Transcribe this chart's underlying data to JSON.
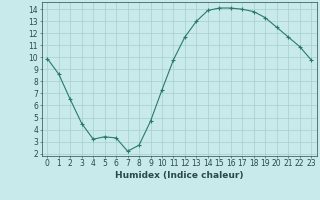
{
  "x": [
    0,
    1,
    2,
    3,
    4,
    5,
    6,
    7,
    8,
    9,
    10,
    11,
    12,
    13,
    14,
    15,
    16,
    17,
    18,
    19,
    20,
    21,
    22,
    23
  ],
  "y": [
    9.9,
    8.6,
    6.5,
    4.5,
    3.2,
    3.4,
    3.3,
    2.2,
    2.7,
    4.7,
    7.3,
    9.8,
    11.7,
    13.0,
    13.9,
    14.1,
    14.1,
    14.0,
    13.8,
    13.3,
    12.5,
    11.7,
    10.9,
    9.8
  ],
  "line_color": "#2a7a6a",
  "marker": "+",
  "bg_color": "#c8eaea",
  "grid_color": "#a8cece",
  "xlabel": "Humidex (Indice chaleur)",
  "xlim": [
    -0.5,
    23.5
  ],
  "ylim": [
    1.8,
    14.6
  ],
  "yticks": [
    2,
    3,
    4,
    5,
    6,
    7,
    8,
    9,
    10,
    11,
    12,
    13,
    14
  ],
  "xticks": [
    0,
    1,
    2,
    3,
    4,
    5,
    6,
    7,
    8,
    9,
    10,
    11,
    12,
    13,
    14,
    15,
    16,
    17,
    18,
    19,
    20,
    21,
    22,
    23
  ],
  "font_color": "#2a4a4a",
  "label_fontsize": 6.5,
  "tick_fontsize": 5.5
}
